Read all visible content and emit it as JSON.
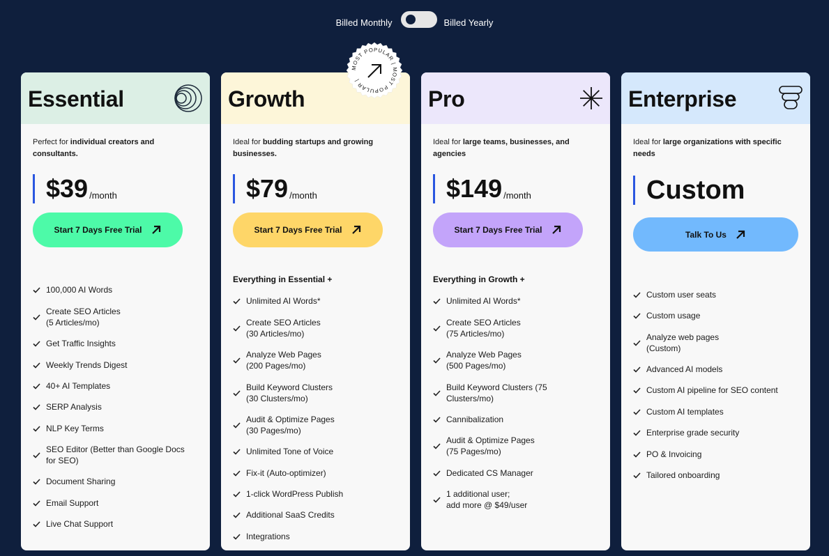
{
  "toggle": {
    "monthly": "Billed Monthly",
    "yearly": "Billed Yearly"
  },
  "badge": {
    "text": "MOST POPULAR | MOST POPULAR |"
  },
  "colors": {
    "background": "#0f1f3d",
    "accent_bar": "#2a56e0",
    "essential_head": "#dcefe5",
    "essential_btn": "#4dfaa8",
    "growth_head": "#fdf6d9",
    "growth_btn": "#fed668",
    "pro_head": "#ece7fb",
    "pro_btn": "#c3a4fa",
    "enterprise_head": "#d5e8fc",
    "enterprise_btn": "#72b9fd"
  },
  "plans": [
    {
      "name": "Essential",
      "icon": "concentric-circles-icon",
      "desc_prefix": "Perfect for ",
      "desc_bold": "individual creators and consultants.",
      "price": "$39",
      "period": "/month",
      "cta": "Start 7 Days Free Trial",
      "features": [
        "100,000 AI Words",
        "Create SEO Articles\n(5 Articles/mo)",
        "Get Traffic Insights",
        "Weekly Trends Digest",
        "40+ AI Templates",
        "SERP Analysis",
        "NLP Key Terms",
        "SEO Editor (Better than Google Docs\nfor SEO)",
        "Document Sharing",
        "Email Support",
        "Live Chat Support"
      ]
    },
    {
      "name": "Growth",
      "icon": "none",
      "desc_prefix": "Ideal for ",
      "desc_bold": "budding startups and growing businesses.",
      "price": "$79",
      "period": "/month",
      "cta": "Start 7 Days Free Trial",
      "subhead": "Everything in Essential +",
      "features": [
        "Unlimited AI Words*",
        "Create SEO Articles\n(30 Articles/mo)",
        "Analyze Web Pages\n(200 Pages/mo)",
        "Build Keyword Clusters\n(30 Clusters/mo)",
        "Audit & Optimize Pages\n(30 Pages/mo)",
        "Unlimited Tone of Voice",
        "Fix-it (Auto-optimizer)",
        "1-click WordPress Publish",
        "Additional SaaS Credits",
        "Integrations"
      ]
    },
    {
      "name": "Pro",
      "icon": "starburst-icon",
      "desc_prefix": "Ideal for ",
      "desc_bold": "large teams, businesses, and agencies",
      "price": "$149",
      "period": "/month",
      "cta": "Start 7 Days Free Trial",
      "subhead": "Everything in Growth +",
      "features": [
        "Unlimited AI Words*",
        "Create SEO Articles\n(75 Articles/mo)",
        "Analyze Web Pages\n(500 Pages/mo)",
        "Build Keyword Clusters (75\nClusters/mo)",
        "Cannibalization",
        "Audit & Optimize Pages\n(75 Pages/mo)",
        "Dedicated CS Manager",
        "1 additional user;\nadd more @ $49/user"
      ]
    },
    {
      "name": "Enterprise",
      "icon": "stacked-layers-icon",
      "desc_prefix": "Ideal for ",
      "desc_bold": "large organizations with specific needs",
      "price": "Custom",
      "cta": "Talk To Us",
      "features": [
        "Custom user seats",
        "Custom usage",
        "Analyze web pages\n(Custom)",
        "Advanced AI models",
        "Custom AI pipeline for SEO content",
        "Custom AI templates",
        "Enterprise grade security",
        "PO & Invoicing",
        "Tailored onboarding"
      ]
    }
  ]
}
